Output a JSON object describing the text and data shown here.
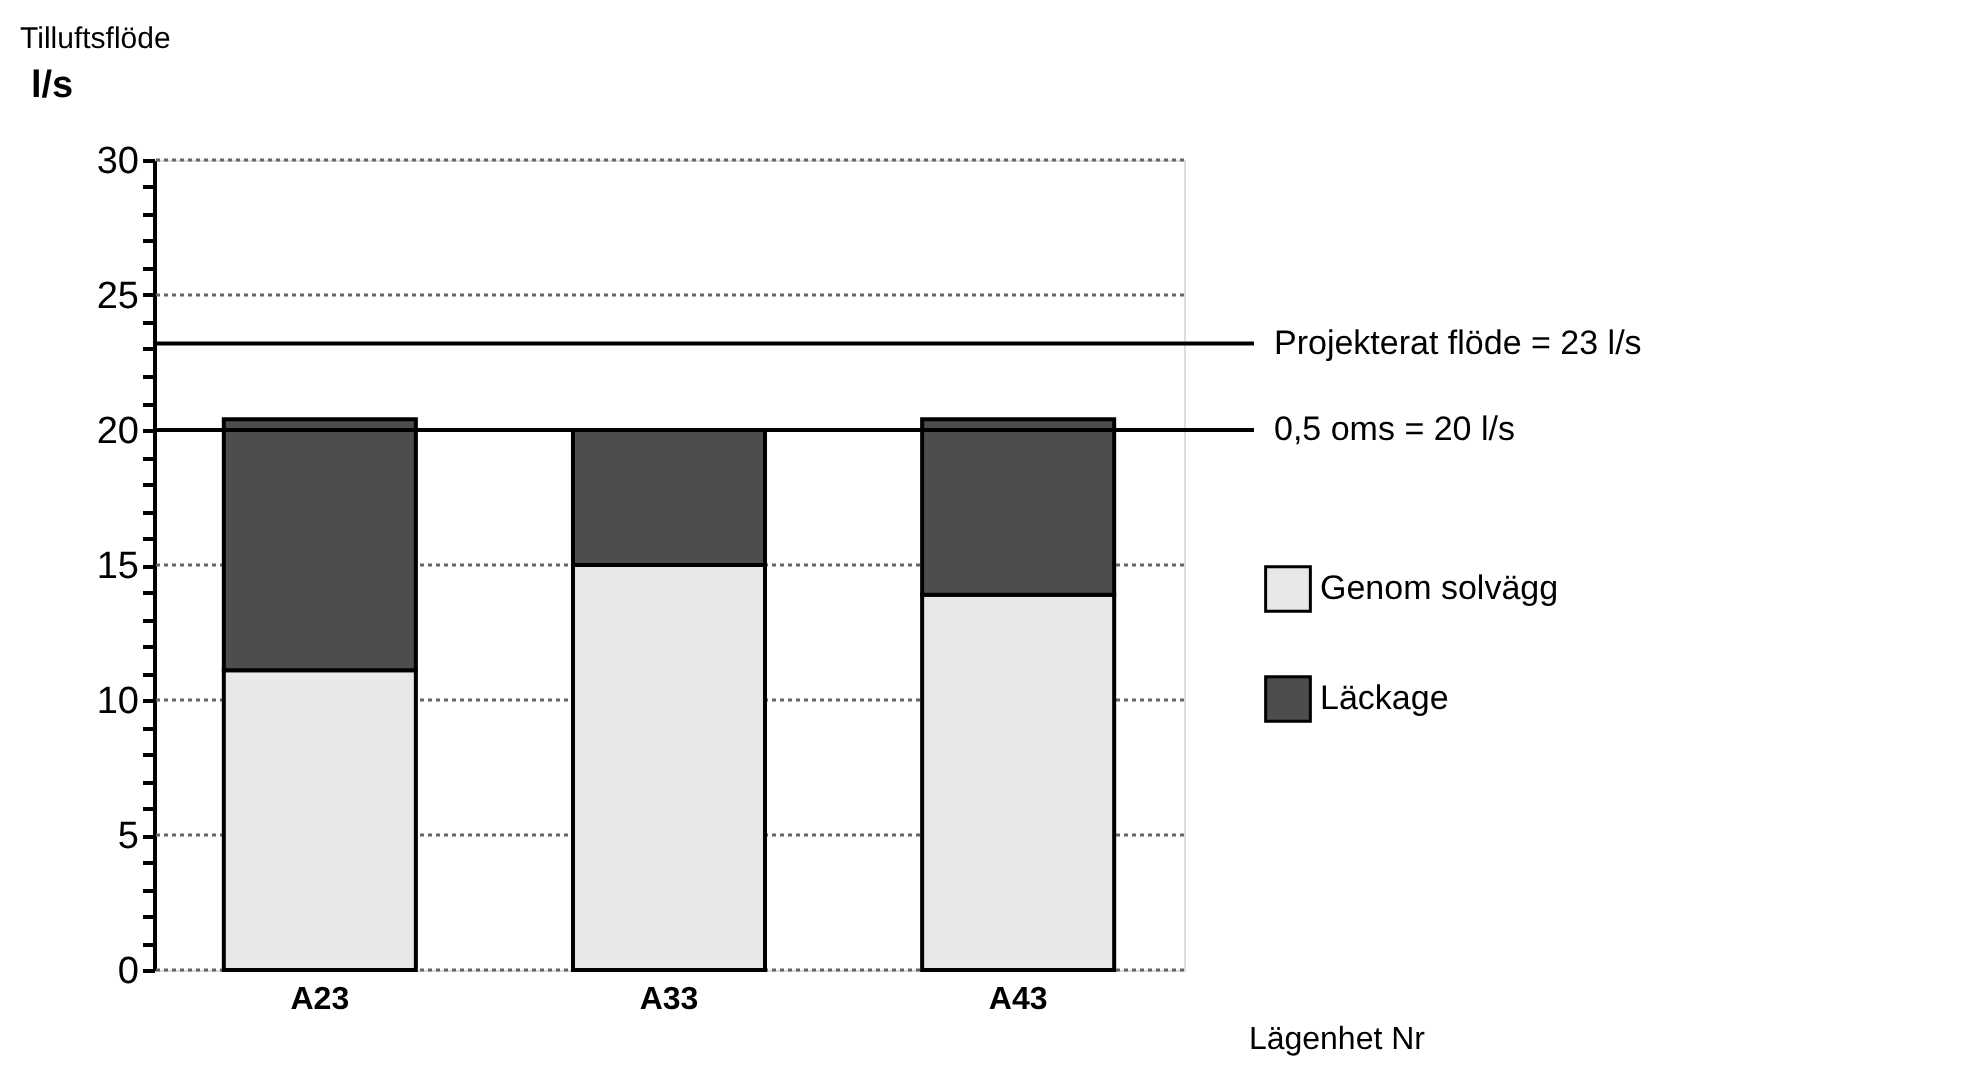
{
  "chart_data": {
    "type": "bar",
    "title": "Tilluftsflöde",
    "ylabel": "l/s",
    "xlabel": "Lägenhet Nr",
    "categories": [
      "A23",
      "A33",
      "A43"
    ],
    "stacked": true,
    "series": [
      {
        "name": "Genom solvägg",
        "color": "#e8e8e8",
        "values": [
          11.1,
          15.0,
          13.9
        ]
      },
      {
        "name": "Läckage",
        "color": "#4d4d4d",
        "values": [
          9.3,
          5.0,
          6.5
        ]
      }
    ],
    "ylim": [
      0,
      30
    ],
    "yticks": [
      0,
      {
        "value": 1,
        "label": null
      },
      {
        "value": 2,
        "label": null
      },
      {
        "value": 3,
        "label": null
      },
      {
        "value": 4,
        "label": null
      },
      5,
      {
        "value": 6,
        "label": null
      },
      {
        "value": 7,
        "label": null
      },
      {
        "value": 8,
        "label": null
      },
      {
        "value": 9,
        "label": null
      },
      10,
      {
        "value": 11,
        "label": null
      },
      {
        "value": 12,
        "label": null
      },
      {
        "value": 13,
        "label": null
      },
      {
        "value": 14,
        "label": null
      },
      15,
      {
        "value": 16,
        "label": null
      },
      {
        "value": 17,
        "label": null
      },
      {
        "value": 18,
        "label": null
      },
      {
        "value": 19,
        "label": null
      },
      20,
      {
        "value": 21,
        "label": null
      },
      {
        "value": 22,
        "label": null
      },
      {
        "value": 23,
        "label": null
      },
      {
        "value": 24,
        "label": null
      },
      25,
      {
        "value": 26,
        "label": null
      },
      {
        "value": 27,
        "label": null
      },
      {
        "value": 28,
        "label": null
      },
      {
        "value": 29,
        "label": null
      },
      30
    ],
    "grid": "y",
    "legend": "right",
    "ref_lines": [
      {
        "axis": "y",
        "value": 23.2,
        "label": "Projekterat  flöde = 23 l/s"
      },
      {
        "axis": "y",
        "value": 20,
        "label": "0,5 oms = 20 l/s"
      }
    ]
  }
}
